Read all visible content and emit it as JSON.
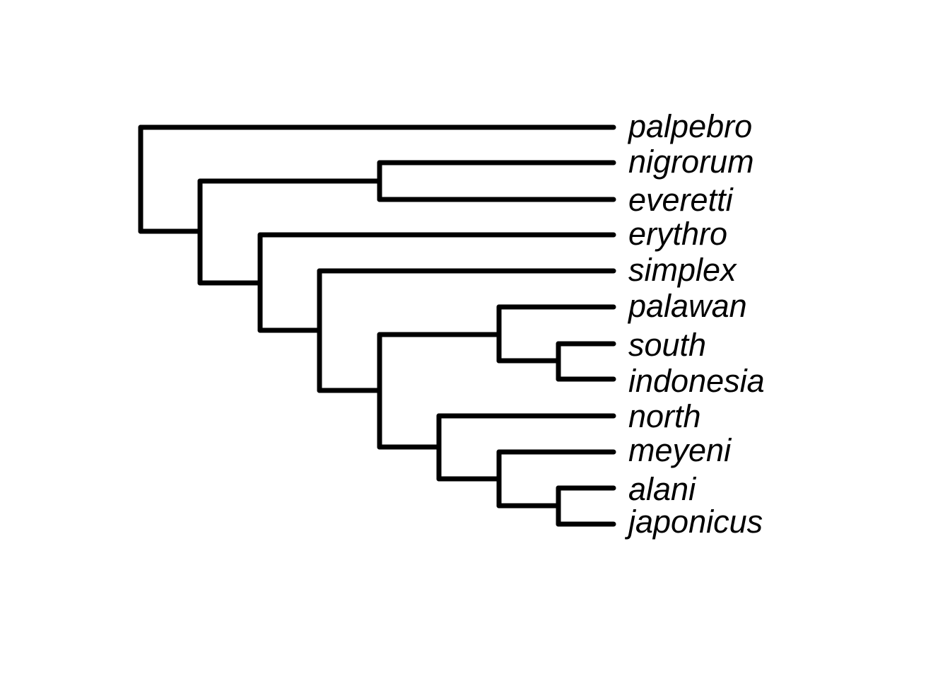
{
  "tree": {
    "line_color": "#000000",
    "taxa": [
      "palpebro",
      "nigrorum",
      "everetti",
      "erythro",
      "simplex",
      "palawan",
      "south",
      "indonesia",
      "north",
      "meyeni",
      "alani",
      "japonicus"
    ],
    "newick": "(palpebro,((nigrorum,everetti),(erythro,(simplex,((palawan,(south,indonesia)),(north,(meyeni,(alani,japonicus))))))));"
  }
}
